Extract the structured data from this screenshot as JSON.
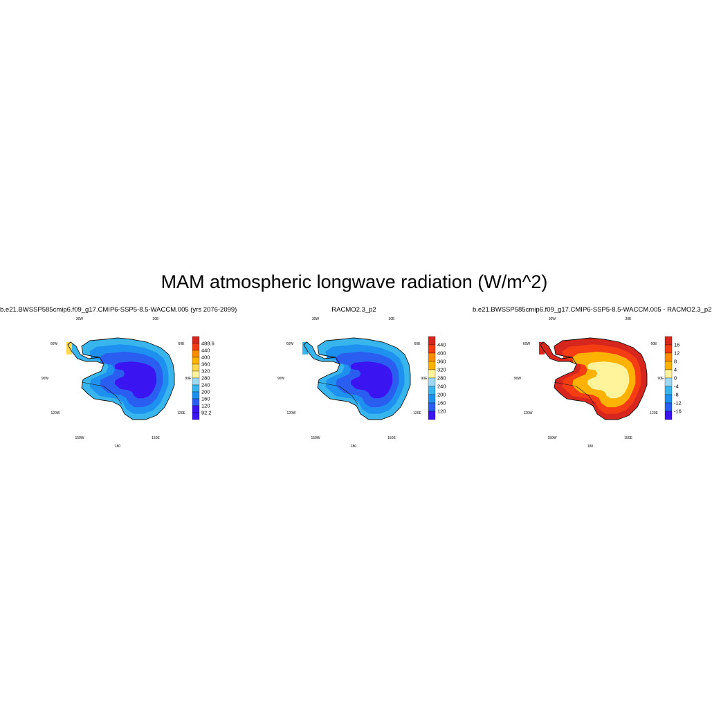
{
  "figure": {
    "title": "MAM atmospheric longwave radiation (W/m^2)"
  },
  "lon_labels": [
    "30W",
    "30E",
    "60W",
    "60E",
    "90W",
    "90E",
    "120W",
    "120E",
    "150W",
    "150E",
    "180"
  ],
  "panels": [
    {
      "id": "model",
      "title": "b.e21.BWSSP585cmip6.f09_g17.CMIP6-SSP5-8.5-WACCM.005 (yrs 2076-2099)",
      "colorbar": {
        "labels": [
          "488.6",
          "440",
          "400",
          "360",
          "320",
          "280",
          "240",
          "200",
          "160",
          "120",
          "92.2"
        ],
        "colors": [
          "#d7261e",
          "#f43d12",
          "#fd8d00",
          "#feb200",
          "#ffd84d",
          "#fff39c",
          "#9fd8f2",
          "#38b5ec",
          "#1e90f0",
          "#2a5ef0",
          "#3b14f2",
          "#3b14f2"
        ]
      },
      "field": {
        "interior": "#3b14f2",
        "ring1": "#2a5ef0",
        "ring2": "#1e90f0",
        "coast": "#38b5ec",
        "peninsula_tip": "#ffd84d"
      }
    },
    {
      "id": "racmo",
      "title": "RACMO2.3_p2",
      "colorbar": {
        "labels": [
          "440",
          "400",
          "360",
          "320",
          "280",
          "240",
          "200",
          "160",
          "120"
        ],
        "colors": [
          "#d7261e",
          "#f43d12",
          "#fd8d00",
          "#feb200",
          "#fff39c",
          "#9fd8f2",
          "#38b5ec",
          "#1e90f0",
          "#2a5ef0",
          "#3b14f2"
        ]
      },
      "field": {
        "interior": "#3b14f2",
        "ring1": "#2a5ef0",
        "ring2": "#1e90f0",
        "coast": "#38b5ec",
        "peninsula_tip": "#38b5ec"
      }
    },
    {
      "id": "difference",
      "title": "b.e21.BWSSP585cmip6.f09_g17.CMIP6-SSP5-8.5-WACCM.005 - RACMO2.3_p2",
      "colorbar": {
        "labels": [
          "16",
          "12",
          "8",
          "4",
          "0",
          "-4",
          "-8",
          "-12",
          "-16"
        ],
        "colors": [
          "#d7261e",
          "#f43d12",
          "#fd8d00",
          "#feb200",
          "#fff39c",
          "#9fd8f2",
          "#38b5ec",
          "#1e90f0",
          "#2a5ef0",
          "#3b14f2"
        ]
      },
      "field": {
        "interior": "#fff39c",
        "ring1": "#feb200",
        "ring2": "#f43d12",
        "coast": "#d7261e",
        "peninsula_tip": "#d7261e"
      }
    }
  ]
}
